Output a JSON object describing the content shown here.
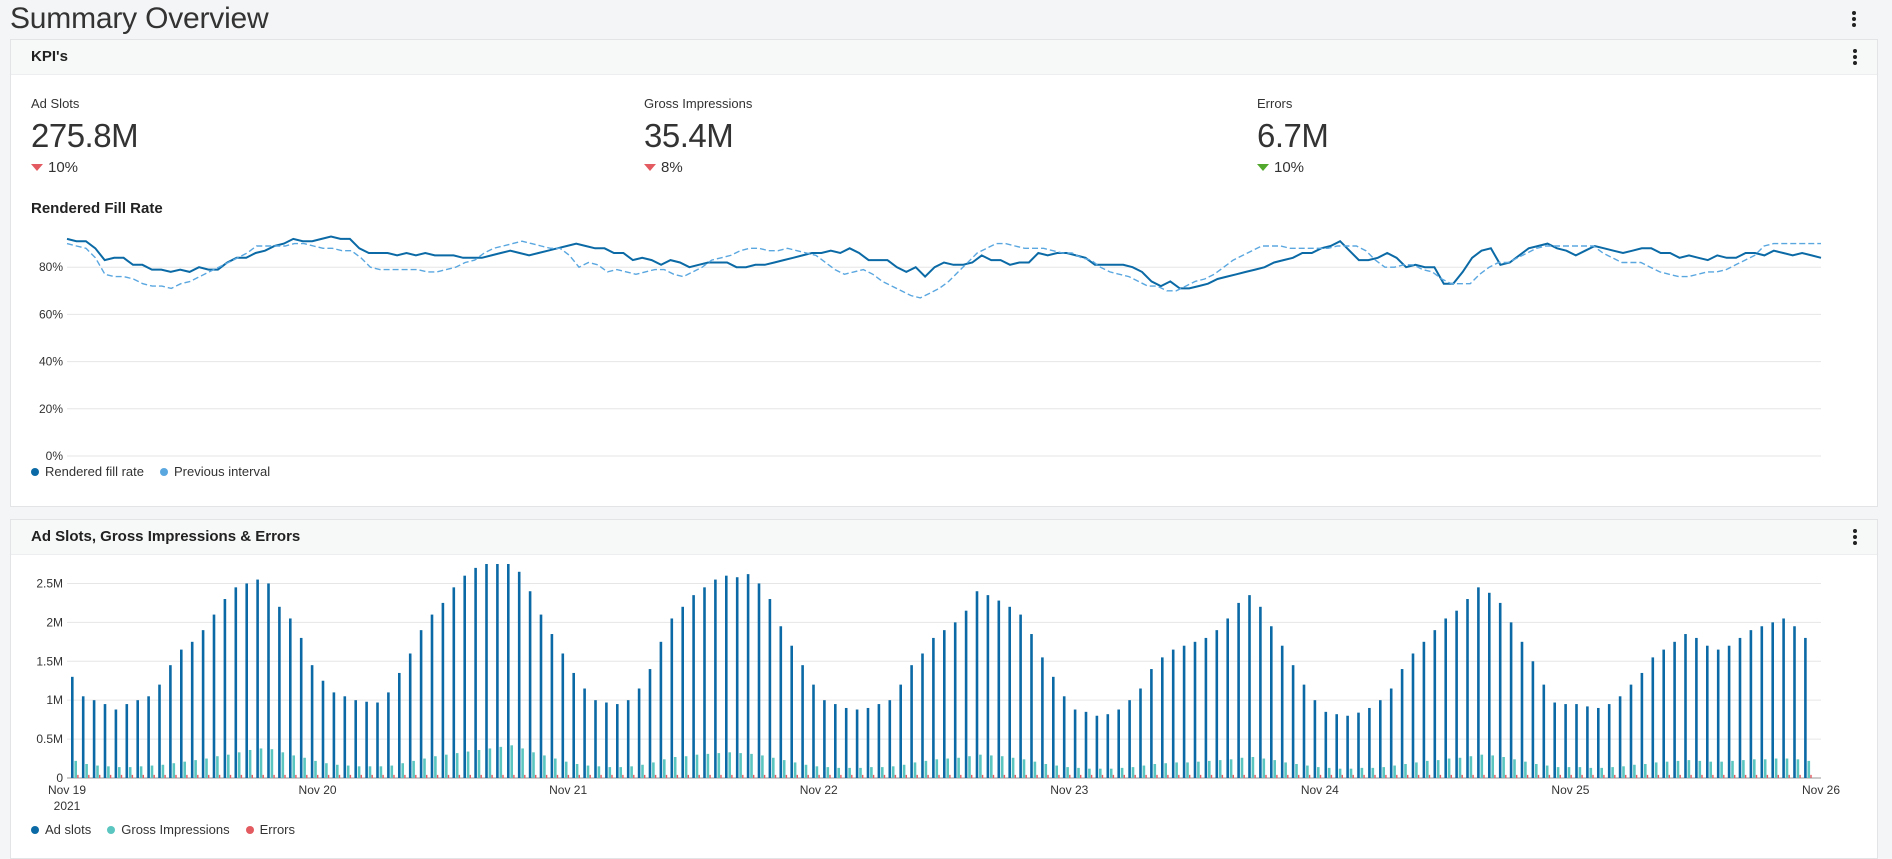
{
  "page": {
    "title": "Summary Overview"
  },
  "kpi_panel": {
    "title": "KPI's",
    "kpis": [
      {
        "label": "Ad Slots",
        "value": "275.8M",
        "delta": "10%",
        "direction": "down",
        "color": "#e35b60"
      },
      {
        "label": "Gross Impressions",
        "value": "35.4M",
        "delta": "8%",
        "direction": "down",
        "color": "#e35b60"
      },
      {
        "label": "Errors",
        "value": "6.7M",
        "delta": "10%",
        "direction": "down",
        "color": "#52a82c"
      }
    ],
    "fill_chart_title": "Rendered Fill Rate",
    "legend": [
      {
        "label": "Rendered fill rate",
        "color": "#0b6aa5"
      },
      {
        "label": "Previous interval",
        "color": "#5aa7e0"
      }
    ]
  },
  "volume_panel": {
    "title": "Ad Slots, Gross Impressions & Errors",
    "legend": [
      {
        "label": "Ad slots",
        "color": "#0b6aa5"
      },
      {
        "label": "Gross Impressions",
        "color": "#5bc6c0"
      },
      {
        "label": "Errors",
        "color": "#e35b60"
      }
    ]
  },
  "chart_data": [
    {
      "type": "line",
      "title": "Rendered Fill Rate",
      "x_ticks": [
        "Nov 19",
        "Nov 20",
        "Nov 21",
        "Nov 22",
        "Nov 23",
        "Nov 24",
        "Nov 25",
        "Nov 26"
      ],
      "x_first_sub": "2021",
      "y_ticks": [
        "0%",
        "20%",
        "40%",
        "60%",
        "80%"
      ],
      "ylim": [
        0,
        100
      ],
      "series": [
        {
          "name": "Rendered fill rate",
          "values": [
            92,
            91,
            91,
            88,
            83,
            84,
            84,
            81,
            81,
            79,
            79,
            78,
            79,
            78,
            80,
            79,
            79,
            82,
            84,
            84,
            86,
            87,
            89,
            90,
            92,
            91,
            91,
            92,
            93,
            92,
            92,
            88,
            86,
            86,
            86,
            85,
            86,
            85,
            86,
            85,
            85,
            85,
            84,
            84,
            84,
            85,
            86,
            87,
            86,
            85,
            86,
            87,
            88,
            89,
            90,
            89,
            88,
            88,
            86,
            86,
            83,
            84,
            83,
            81,
            83,
            82,
            80,
            81,
            82,
            82,
            82,
            80,
            80,
            81,
            81,
            82,
            83,
            84,
            85,
            86,
            86,
            87,
            86,
            88,
            86,
            83,
            83,
            83,
            80,
            78,
            80,
            76,
            80,
            82,
            81,
            81,
            82,
            85,
            83,
            83,
            81,
            82,
            82,
            86,
            85,
            86,
            86,
            85,
            84,
            81,
            81,
            81,
            81,
            80,
            78,
            74,
            72,
            74,
            71,
            71,
            72,
            73,
            75,
            76,
            77,
            78,
            79,
            80,
            82,
            83,
            84,
            86,
            86,
            88,
            89,
            91,
            87,
            83,
            83,
            84,
            86,
            84,
            80,
            81,
            80,
            80,
            73,
            73,
            78,
            84,
            87,
            88,
            81,
            82,
            85,
            88,
            89,
            90,
            88,
            87,
            85,
            87,
            89,
            88,
            87,
            86,
            87,
            88,
            88,
            86,
            86,
            84,
            85,
            84,
            83,
            85,
            84,
            84,
            86,
            86,
            85,
            87,
            86,
            85,
            86,
            85,
            84
          ],
          "color": "#0b6aa5"
        },
        {
          "name": "Previous interval",
          "values": [
            90,
            89,
            88,
            84,
            77,
            76,
            76,
            75,
            73,
            72,
            72,
            71,
            73,
            74,
            76,
            78,
            80,
            82,
            84,
            86,
            89,
            89,
            89,
            89,
            90,
            90,
            89,
            88,
            88,
            87,
            87,
            84,
            80,
            79,
            79,
            79,
            79,
            79,
            78,
            78,
            79,
            80,
            82,
            83,
            86,
            88,
            89,
            90,
            91,
            90,
            89,
            88,
            88,
            85,
            80,
            82,
            81,
            78,
            79,
            78,
            77,
            78,
            79,
            79,
            77,
            76,
            78,
            80,
            83,
            84,
            85,
            87,
            88,
            88,
            87,
            87,
            88,
            87,
            86,
            85,
            82,
            79,
            77,
            78,
            79,
            77,
            74,
            72,
            70,
            68,
            67,
            69,
            71,
            74,
            78,
            82,
            86,
            88,
            90,
            90,
            89,
            88,
            88,
            88,
            87,
            86,
            86,
            84,
            83,
            80,
            78,
            77,
            76,
            74,
            72,
            72,
            70,
            70,
            72,
            74,
            75,
            77,
            80,
            83,
            85,
            87,
            89,
            89,
            89,
            88,
            88,
            88,
            88,
            88,
            89,
            89,
            89,
            87,
            83,
            80,
            80,
            81,
            81,
            79,
            78,
            75,
            73,
            73,
            73,
            77,
            80,
            82,
            82,
            84,
            86,
            88,
            89,
            89,
            89,
            89,
            89,
            89,
            86,
            84,
            82,
            82,
            82,
            80,
            78,
            77,
            76,
            76,
            77,
            78,
            78,
            79,
            81,
            83,
            85,
            89,
            90,
            90,
            90,
            90,
            90,
            90
          ],
          "color": "#5aa7e0"
        }
      ]
    },
    {
      "type": "bar",
      "title": "",
      "x_ticks": [
        "Nov 19",
        "Nov 20",
        "Nov 21",
        "Nov 22",
        "Nov 23",
        "Nov 24",
        "Nov 25",
        "Nov 26"
      ],
      "x_first_sub": "2021",
      "y_ticks": [
        "0",
        "0.5M",
        "1M",
        "1.5M",
        "2M",
        "2.5M"
      ],
      "ylim": [
        0,
        2.75
      ],
      "series": [
        {
          "name": "Ad slots",
          "values": [
            1.3,
            1.05,
            1.0,
            0.95,
            0.88,
            0.95,
            1.0,
            1.05,
            1.2,
            1.45,
            1.65,
            1.75,
            1.9,
            2.1,
            2.3,
            2.45,
            2.5,
            2.55,
            2.5,
            2.2,
            2.05,
            1.8,
            1.45,
            1.25,
            1.1,
            1.05,
            1.0,
            0.98,
            0.97,
            1.1,
            1.35,
            1.6,
            1.9,
            2.1,
            2.25,
            2.45,
            2.6,
            2.7,
            2.75,
            2.8,
            2.85,
            2.65,
            2.4,
            2.1,
            1.85,
            1.6,
            1.35,
            1.15,
            1.0,
            0.97,
            0.95,
            1.0,
            1.15,
            1.4,
            1.75,
            2.05,
            2.2,
            2.35,
            2.45,
            2.55,
            2.6,
            2.58,
            2.62,
            2.5,
            2.3,
            1.95,
            1.7,
            1.45,
            1.2,
            1.0,
            0.95,
            0.9,
            0.88,
            0.9,
            0.95,
            1.0,
            1.2,
            1.45,
            1.6,
            1.8,
            1.9,
            2.0,
            2.15,
            2.4,
            2.35,
            2.28,
            2.2,
            2.1,
            1.85,
            1.55,
            1.3,
            1.05,
            0.88,
            0.85,
            0.8,
            0.82,
            0.88,
            1.0,
            1.15,
            1.4,
            1.55,
            1.65,
            1.7,
            1.75,
            1.8,
            1.9,
            2.05,
            2.25,
            2.35,
            2.2,
            1.95,
            1.7,
            1.45,
            1.2,
            1.0,
            0.85,
            0.82,
            0.8,
            0.84,
            0.9,
            1.0,
            1.15,
            1.4,
            1.6,
            1.75,
            1.9,
            2.05,
            2.15,
            2.3,
            2.45,
            2.38,
            2.25,
            2.0,
            1.75,
            1.5,
            1.2,
            0.97,
            0.95,
            0.95,
            0.92,
            0.9,
            0.95,
            1.05,
            1.2,
            1.35,
            1.55,
            1.65,
            1.75,
            1.85,
            1.8,
            1.7,
            1.65,
            1.7,
            1.8,
            1.9,
            1.95,
            2.0,
            2.05,
            1.95,
            1.8
          ],
          "color": "#0b6aa5"
        },
        {
          "name": "Gross Impressions",
          "values": [
            0.22,
            0.18,
            0.16,
            0.15,
            0.14,
            0.14,
            0.15,
            0.16,
            0.17,
            0.19,
            0.21,
            0.23,
            0.25,
            0.28,
            0.3,
            0.33,
            0.36,
            0.38,
            0.37,
            0.33,
            0.29,
            0.26,
            0.22,
            0.19,
            0.17,
            0.16,
            0.15,
            0.15,
            0.15,
            0.16,
            0.19,
            0.22,
            0.25,
            0.28,
            0.3,
            0.32,
            0.34,
            0.36,
            0.38,
            0.4,
            0.42,
            0.38,
            0.33,
            0.29,
            0.25,
            0.21,
            0.18,
            0.16,
            0.15,
            0.14,
            0.14,
            0.15,
            0.17,
            0.2,
            0.24,
            0.27,
            0.28,
            0.3,
            0.31,
            0.32,
            0.33,
            0.32,
            0.31,
            0.29,
            0.26,
            0.23,
            0.2,
            0.17,
            0.15,
            0.14,
            0.13,
            0.13,
            0.13,
            0.14,
            0.14,
            0.15,
            0.17,
            0.2,
            0.22,
            0.24,
            0.25,
            0.26,
            0.28,
            0.3,
            0.29,
            0.28,
            0.26,
            0.24,
            0.21,
            0.18,
            0.16,
            0.14,
            0.13,
            0.12,
            0.12,
            0.12,
            0.13,
            0.14,
            0.16,
            0.18,
            0.19,
            0.2,
            0.2,
            0.21,
            0.22,
            0.23,
            0.24,
            0.26,
            0.27,
            0.25,
            0.23,
            0.2,
            0.18,
            0.16,
            0.14,
            0.13,
            0.12,
            0.12,
            0.13,
            0.13,
            0.14,
            0.16,
            0.18,
            0.2,
            0.22,
            0.23,
            0.25,
            0.26,
            0.28,
            0.3,
            0.29,
            0.27,
            0.24,
            0.21,
            0.18,
            0.16,
            0.14,
            0.14,
            0.14,
            0.13,
            0.13,
            0.14,
            0.15,
            0.17,
            0.18,
            0.2,
            0.21,
            0.22,
            0.23,
            0.22,
            0.21,
            0.21,
            0.22,
            0.23,
            0.24,
            0.24,
            0.25,
            0.25,
            0.24,
            0.22
          ],
          "color": "#5bc6c0"
        },
        {
          "name": "Errors",
          "values": [
            0.04,
            0.04,
            0.04,
            0.04,
            0.04,
            0.04,
            0.04,
            0.04,
            0.04,
            0.04,
            0.04,
            0.04,
            0.04,
            0.04,
            0.04,
            0.04,
            0.04,
            0.04,
            0.04,
            0.04,
            0.04,
            0.04,
            0.04,
            0.04,
            0.04,
            0.04,
            0.04,
            0.04,
            0.04,
            0.04,
            0.04,
            0.04,
            0.04,
            0.04,
            0.04,
            0.04,
            0.04,
            0.04,
            0.04,
            0.04,
            0.04,
            0.04,
            0.04,
            0.04,
            0.04,
            0.04,
            0.04,
            0.04,
            0.04,
            0.04,
            0.04,
            0.04,
            0.04,
            0.04,
            0.04,
            0.04,
            0.04,
            0.04,
            0.04,
            0.04,
            0.04,
            0.04,
            0.04,
            0.04,
            0.04,
            0.04,
            0.04,
            0.04,
            0.04,
            0.04,
            0.04,
            0.04,
            0.04,
            0.04,
            0.04,
            0.04,
            0.04,
            0.04,
            0.04,
            0.04,
            0.04,
            0.04,
            0.04,
            0.04,
            0.04,
            0.04,
            0.04,
            0.04,
            0.04,
            0.04,
            0.04,
            0.04,
            0.04,
            0.04,
            0.04,
            0.04,
            0.04,
            0.04,
            0.04,
            0.04,
            0.04,
            0.04,
            0.04,
            0.04,
            0.04,
            0.04,
            0.04,
            0.04,
            0.04,
            0.04,
            0.04,
            0.04,
            0.04,
            0.04,
            0.04,
            0.04,
            0.04,
            0.04,
            0.04,
            0.04,
            0.04,
            0.04,
            0.04,
            0.04,
            0.04,
            0.04,
            0.04,
            0.04,
            0.04,
            0.04,
            0.04,
            0.04,
            0.04,
            0.04,
            0.04,
            0.04,
            0.04,
            0.04,
            0.04,
            0.04,
            0.04,
            0.04,
            0.04,
            0.04,
            0.04,
            0.04,
            0.04,
            0.04,
            0.04,
            0.04,
            0.04,
            0.04,
            0.04,
            0.04,
            0.04,
            0.04,
            0.04,
            0.04,
            0.04,
            0.04,
            0.04,
            0.04
          ],
          "color": "#e35b60"
        }
      ]
    }
  ]
}
